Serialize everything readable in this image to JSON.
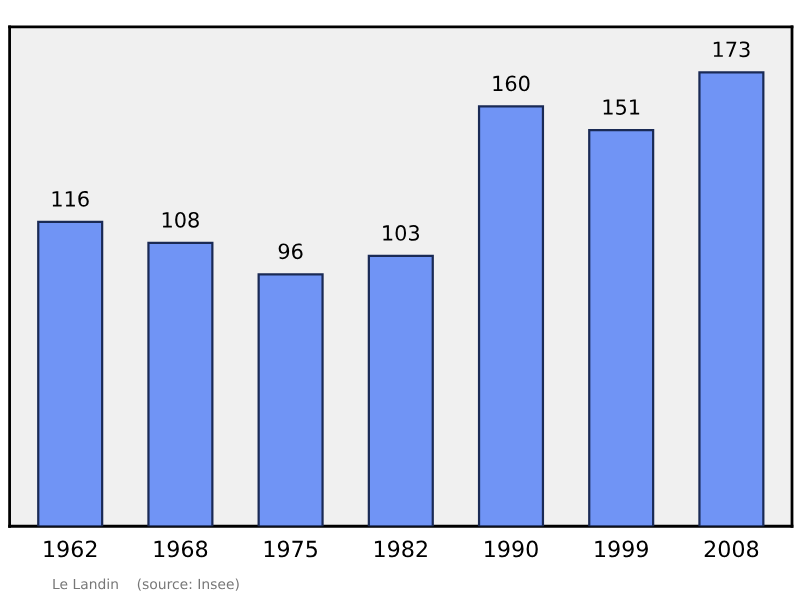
{
  "chart_data": {
    "type": "bar",
    "categories": [
      "1962",
      "1968",
      "1975",
      "1982",
      "1990",
      "1999",
      "2008"
    ],
    "values": [
      116,
      108,
      96,
      103,
      160,
      151,
      173
    ],
    "color": "#7094f5",
    "data_labels": true,
    "annotations": [
      "Le Landin    (source: Insee)"
    ]
  }
}
